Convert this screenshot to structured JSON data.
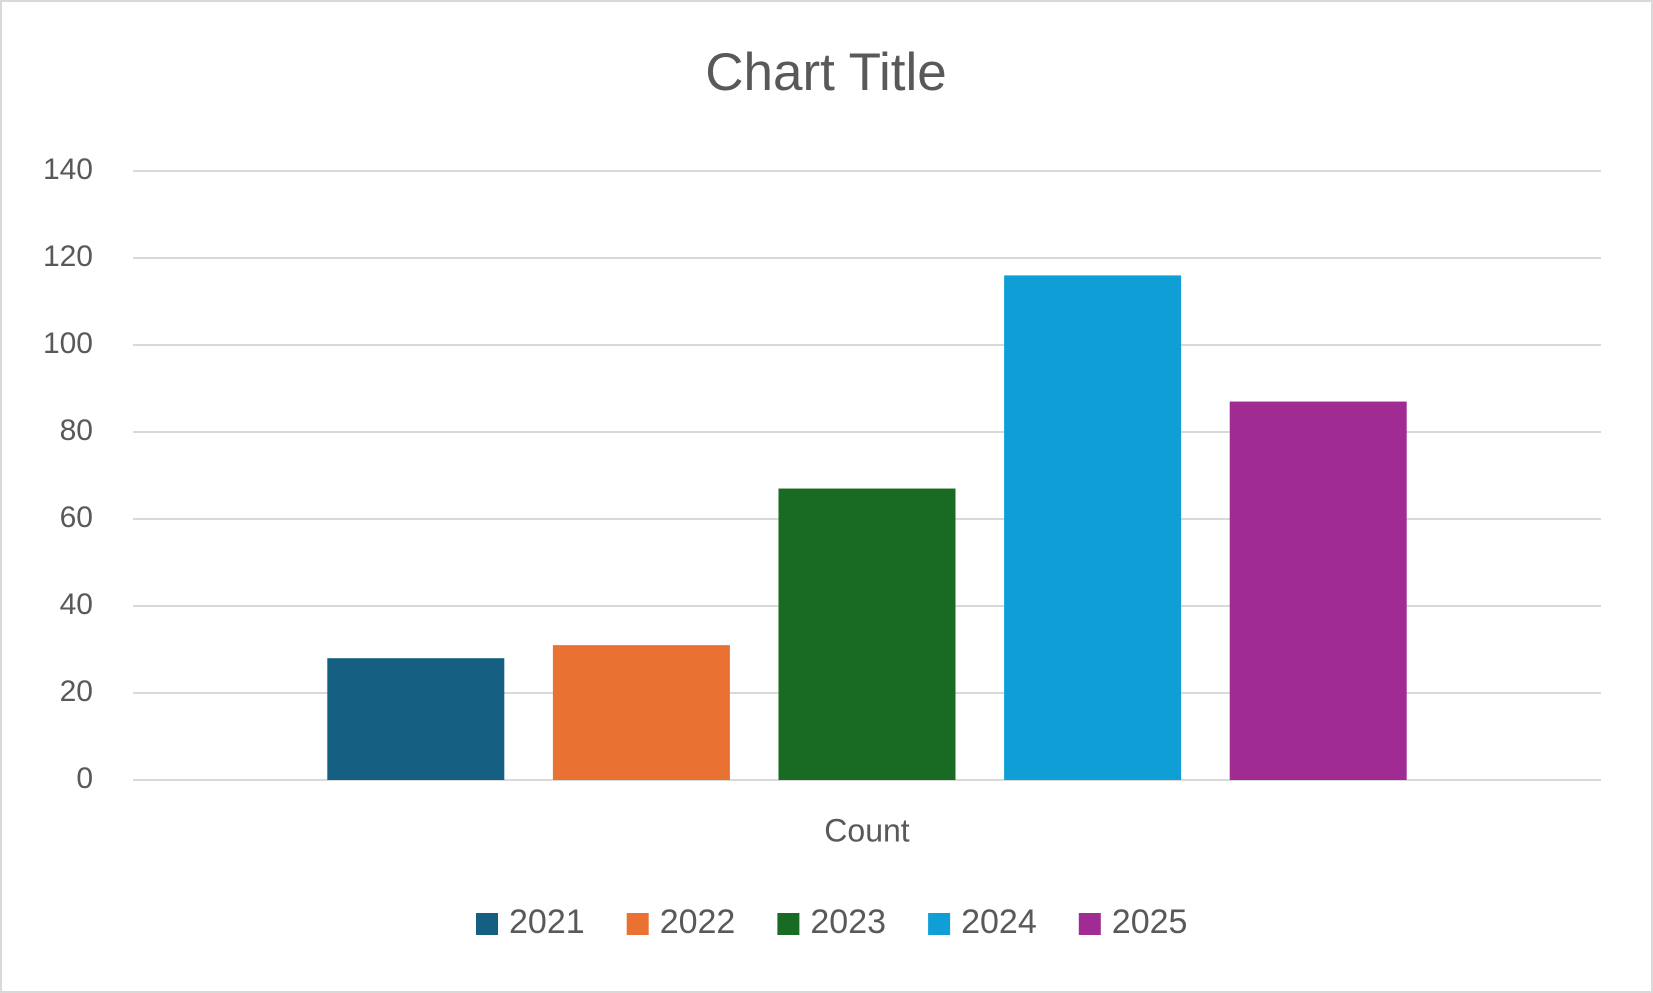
{
  "chart_data": {
    "type": "bar",
    "title": "Chart Title",
    "categories": [
      "Count"
    ],
    "series": [
      {
        "name": "2021",
        "color": "#156082",
        "values": [
          28
        ]
      },
      {
        "name": "2022",
        "color": "#e97132",
        "values": [
          31
        ]
      },
      {
        "name": "2023",
        "color": "#196b24",
        "values": [
          67
        ]
      },
      {
        "name": "2024",
        "color": "#0f9ed5",
        "values": [
          116
        ]
      },
      {
        "name": "2025",
        "color": "#a02b93",
        "values": [
          87
        ]
      }
    ],
    "ylim": [
      0,
      140
    ],
    "yticks": [
      0,
      20,
      40,
      60,
      80,
      100,
      120,
      140
    ],
    "grid": true,
    "legend": "bottom"
  }
}
